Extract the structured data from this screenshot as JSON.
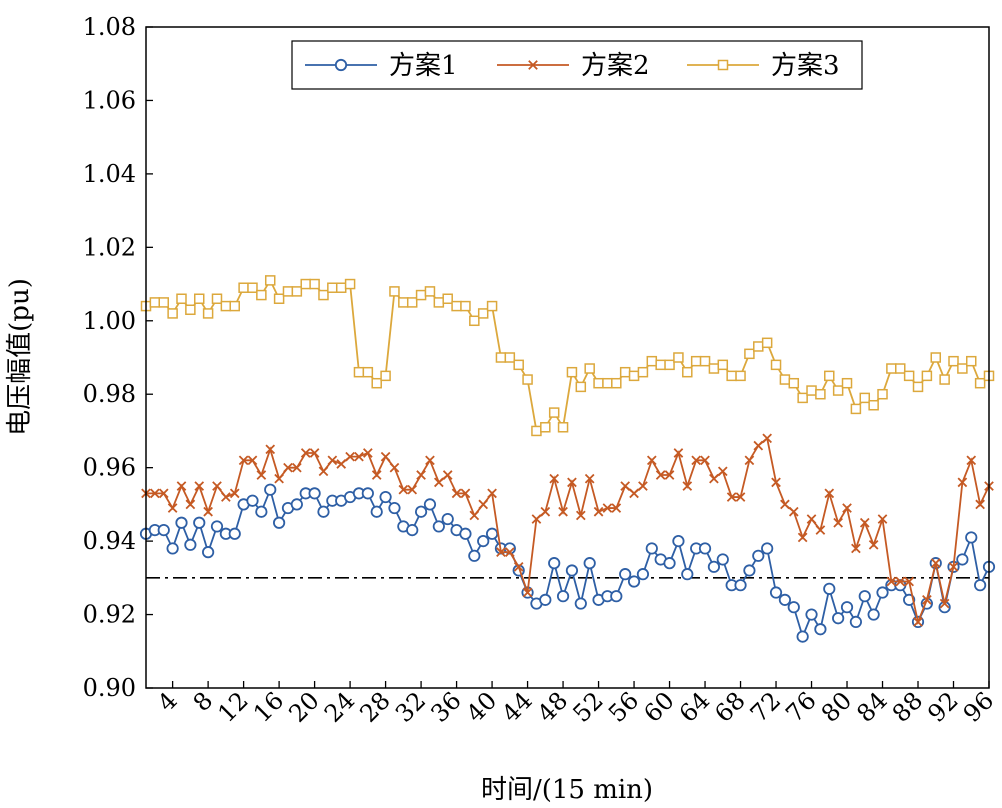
{
  "chart_data": {
    "type": "line",
    "xlabel": "时间/(15 min)",
    "ylabel": "电压幅值(pu)",
    "xlim": [
      1,
      96
    ],
    "ylim": [
      0.9,
      1.08
    ],
    "xticks": [
      4,
      8,
      12,
      16,
      20,
      24,
      28,
      32,
      36,
      40,
      44,
      48,
      52,
      56,
      60,
      64,
      68,
      72,
      76,
      80,
      84,
      88,
      92,
      96
    ],
    "yticks": [
      "0.90",
      "0.92",
      "0.94",
      "0.96",
      "0.98",
      "1.00",
      "1.02",
      "1.04",
      "1.06",
      "1.08"
    ],
    "legend_position": "top-right",
    "reference_line": {
      "y": 0.93,
      "style": "dash-dot",
      "color": "#000000"
    },
    "series": [
      {
        "name": "方案1",
        "color": "#2e5fa5",
        "marker": "circle",
        "values": [
          0.942,
          0.943,
          0.943,
          0.938,
          0.945,
          0.939,
          0.945,
          0.937,
          0.944,
          0.942,
          0.942,
          0.95,
          0.951,
          0.948,
          0.954,
          0.945,
          0.949,
          0.95,
          0.953,
          0.953,
          0.948,
          0.951,
          0.951,
          0.952,
          0.953,
          0.953,
          0.948,
          0.952,
          0.949,
          0.944,
          0.943,
          0.948,
          0.95,
          0.944,
          0.946,
          0.943,
          0.942,
          0.936,
          0.94,
          0.942,
          0.938,
          0.938,
          0.932,
          0.926,
          0.923,
          0.924,
          0.934,
          0.925,
          0.932,
          0.923,
          0.934,
          0.924,
          0.925,
          0.925,
          0.931,
          0.929,
          0.931,
          0.938,
          0.935,
          0.934,
          0.94,
          0.931,
          0.938,
          0.938,
          0.933,
          0.935,
          0.928,
          0.928,
          0.932,
          0.936,
          0.938,
          0.926,
          0.924,
          0.922,
          0.914,
          0.92,
          0.916,
          0.927,
          0.919,
          0.922,
          0.918,
          0.925,
          0.92,
          0.926,
          0.928,
          0.928,
          0.924,
          0.918,
          0.923,
          0.934,
          0.922,
          0.933,
          0.935,
          0.941,
          0.928,
          0.933
        ]
      },
      {
        "name": "方案2",
        "color": "#c55a24",
        "marker": "x",
        "values": [
          0.953,
          0.953,
          0.953,
          0.949,
          0.955,
          0.95,
          0.955,
          0.948,
          0.955,
          0.952,
          0.953,
          0.962,
          0.962,
          0.958,
          0.965,
          0.957,
          0.96,
          0.96,
          0.964,
          0.964,
          0.959,
          0.962,
          0.961,
          0.963,
          0.963,
          0.964,
          0.958,
          0.963,
          0.96,
          0.954,
          0.954,
          0.958,
          0.962,
          0.956,
          0.958,
          0.953,
          0.953,
          0.947,
          0.95,
          0.953,
          0.937,
          0.937,
          0.933,
          0.926,
          0.946,
          0.948,
          0.957,
          0.948,
          0.956,
          0.947,
          0.957,
          0.948,
          0.949,
          0.949,
          0.955,
          0.953,
          0.955,
          0.962,
          0.958,
          0.958,
          0.964,
          0.955,
          0.962,
          0.962,
          0.957,
          0.959,
          0.952,
          0.952,
          0.962,
          0.966,
          0.968,
          0.956,
          0.95,
          0.948,
          0.941,
          0.946,
          0.943,
          0.953,
          0.945,
          0.949,
          0.938,
          0.945,
          0.939,
          0.946,
          0.929,
          0.929,
          0.929,
          0.918,
          0.924,
          0.934,
          0.923,
          0.933,
          0.956,
          0.962,
          0.95,
          0.955
        ]
      },
      {
        "name": "方案3",
        "color": "#dca83c",
        "marker": "square",
        "values": [
          1.004,
          1.005,
          1.005,
          1.002,
          1.006,
          1.003,
          1.006,
          1.002,
          1.006,
          1.004,
          1.004,
          1.009,
          1.009,
          1.007,
          1.011,
          1.006,
          1.008,
          1.008,
          1.01,
          1.01,
          1.007,
          1.009,
          1.009,
          1.01,
          0.986,
          0.986,
          0.983,
          0.985,
          1.008,
          1.005,
          1.005,
          1.007,
          1.008,
          1.005,
          1.006,
          1.004,
          1.004,
          1.0,
          1.002,
          1.004,
          0.99,
          0.99,
          0.988,
          0.984,
          0.97,
          0.971,
          0.975,
          0.971,
          0.986,
          0.982,
          0.987,
          0.983,
          0.983,
          0.983,
          0.986,
          0.985,
          0.986,
          0.989,
          0.988,
          0.988,
          0.99,
          0.986,
          0.989,
          0.989,
          0.987,
          0.988,
          0.985,
          0.985,
          0.991,
          0.993,
          0.994,
          0.988,
          0.984,
          0.983,
          0.979,
          0.981,
          0.98,
          0.985,
          0.981,
          0.983,
          0.976,
          0.979,
          0.977,
          0.98,
          0.987,
          0.987,
          0.985,
          0.982,
          0.985,
          0.99,
          0.984,
          0.989,
          0.987,
          0.989,
          0.983,
          0.985
        ]
      }
    ]
  }
}
